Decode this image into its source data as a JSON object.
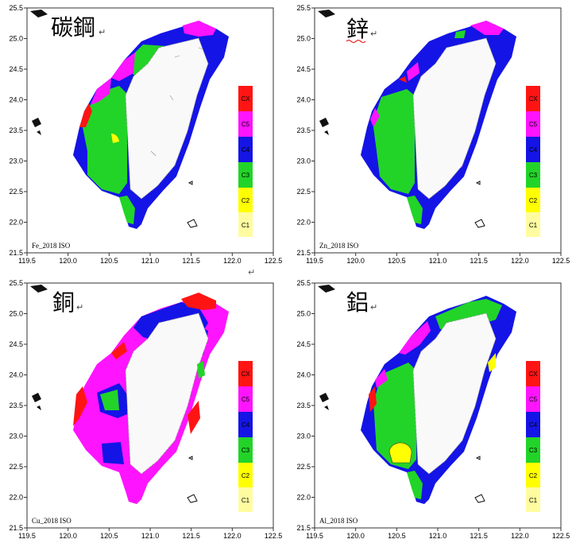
{
  "lon_ticks": [
    "119.5",
    "120.0",
    "120.5",
    "121.0",
    "121.5",
    "122.0",
    "122.5"
  ],
  "lat_ticks": [
    "21.5",
    "22.0",
    "22.5",
    "23.0",
    "23.5",
    "24.0",
    "24.5",
    "25.0",
    "25.5"
  ],
  "lon_range": [
    119.5,
    122.5
  ],
  "lat_range": [
    21.5,
    25.5
  ],
  "legend": [
    {
      "label": "C1",
      "color": "#fffca0"
    },
    {
      "label": "C2",
      "color": "#ffff00"
    },
    {
      "label": "C3",
      "color": "#22d428"
    },
    {
      "label": "C4",
      "color": "#1414e6"
    },
    {
      "label": "C5",
      "color": "#ff14ff"
    },
    {
      "label": "CX",
      "color": "#ff1414"
    }
  ],
  "panels": [
    {
      "title": "碳鋼",
      "caption": "Fe_2018 ISO"
    },
    {
      "title": "鋅",
      "caption": "Zn_2018 ISO"
    },
    {
      "title": "銅",
      "caption": "Cu_2018 ISO"
    },
    {
      "title": "鋁",
      "caption": "Al_2018 ISO"
    }
  ],
  "return_mark": "↵"
}
